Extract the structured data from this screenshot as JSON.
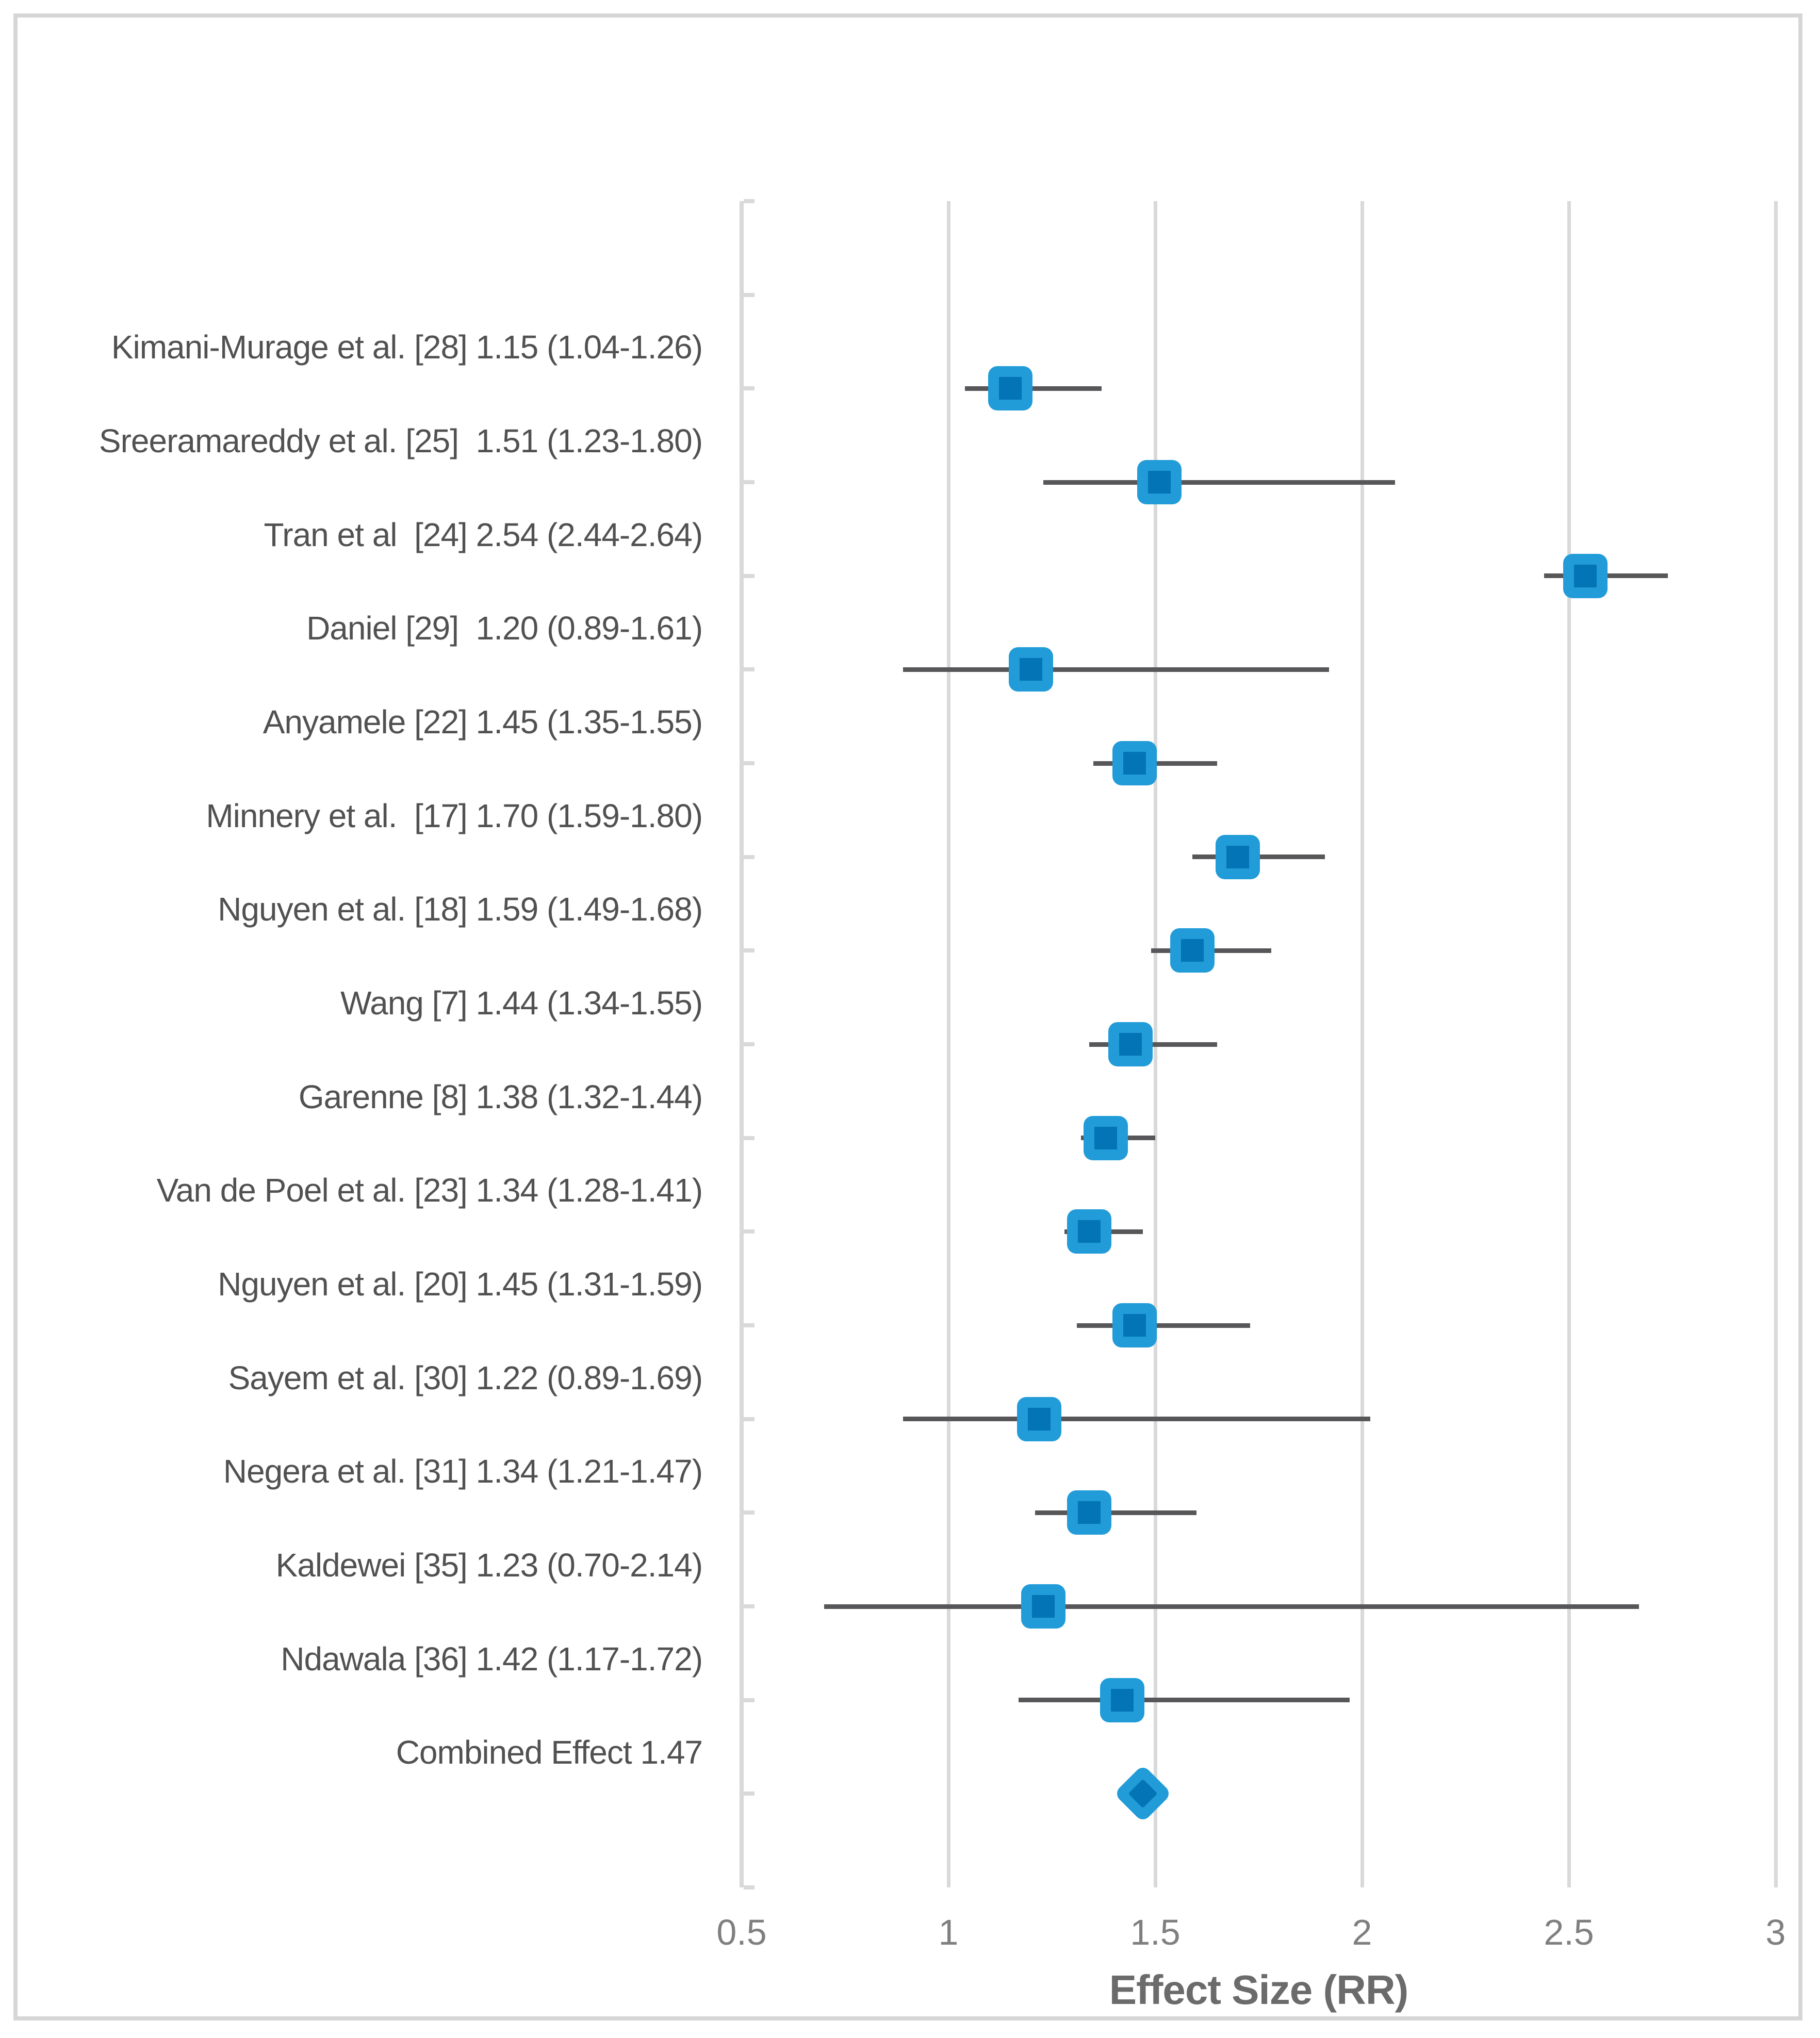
{
  "figure": {
    "kind": "forest plot (meta-analysis)",
    "background": "#ffffff",
    "border_color": "#D6D6D6"
  },
  "chart_data": {
    "type": "scatter",
    "subtype": "forest_plot",
    "xlabel": "Effect Size (RR)",
    "xlim": [
      0.5,
      3
    ],
    "x_ticks": [
      0.5,
      1,
      1.5,
      2,
      2.5,
      3
    ],
    "x_tick_labels": [
      "0.5",
      "1",
      "1.5",
      "2",
      "2.5",
      "3"
    ],
    "grid": "vertical gridlines at each x tick",
    "legend": "none",
    "bar_note": "error bars as drawn in source image: left end = ci_low, right end = mean + (ci_high - ci_low)",
    "studies": [
      {
        "label": "Kimani-Murage et al. [28] 1.15 (1.04-1.26)",
        "mean": 1.15,
        "ci_low": 1.04,
        "ci_high": 1.26,
        "drawn_bar": [
          1.04,
          1.37
        ],
        "marker": "square"
      },
      {
        "label": "Sreeramareddy et al. [25]  1.51 (1.23-1.80)",
        "mean": 1.51,
        "ci_low": 1.23,
        "ci_high": 1.8,
        "drawn_bar": [
          1.23,
          2.08
        ],
        "marker": "square"
      },
      {
        "label": "Tran et al  [24] 2.54 (2.44-2.64)",
        "mean": 2.54,
        "ci_low": 2.44,
        "ci_high": 2.64,
        "drawn_bar": [
          2.44,
          2.74
        ],
        "marker": "square"
      },
      {
        "label": "Daniel [29]  1.20 (0.89-1.61)",
        "mean": 1.2,
        "ci_low": 0.89,
        "ci_high": 1.61,
        "drawn_bar": [
          0.89,
          1.92
        ],
        "marker": "square"
      },
      {
        "label": "Anyamele [22] 1.45 (1.35-1.55)",
        "mean": 1.45,
        "ci_low": 1.35,
        "ci_high": 1.55,
        "drawn_bar": [
          1.35,
          1.65
        ],
        "marker": "square"
      },
      {
        "label": "Minnery et al.  [17] 1.70 (1.59-1.80)",
        "mean": 1.7,
        "ci_low": 1.59,
        "ci_high": 1.8,
        "drawn_bar": [
          1.59,
          1.91
        ],
        "marker": "square"
      },
      {
        "label": "Nguyen et al. [18] 1.59 (1.49-1.68)",
        "mean": 1.59,
        "ci_low": 1.49,
        "ci_high": 1.68,
        "drawn_bar": [
          1.49,
          1.78
        ],
        "marker": "square"
      },
      {
        "label": "Wang [7] 1.44 (1.34-1.55)",
        "mean": 1.44,
        "ci_low": 1.34,
        "ci_high": 1.55,
        "drawn_bar": [
          1.34,
          1.65
        ],
        "marker": "square"
      },
      {
        "label": "Garenne [8] 1.38 (1.32-1.44)",
        "mean": 1.38,
        "ci_low": 1.32,
        "ci_high": 1.44,
        "drawn_bar": [
          1.32,
          1.5
        ],
        "marker": "square"
      },
      {
        "label": "Van de Poel et al. [23] 1.34 (1.28-1.41)",
        "mean": 1.34,
        "ci_low": 1.28,
        "ci_high": 1.41,
        "drawn_bar": [
          1.28,
          1.47
        ],
        "marker": "square"
      },
      {
        "label": "Nguyen et al. [20] 1.45 (1.31-1.59)",
        "mean": 1.45,
        "ci_low": 1.31,
        "ci_high": 1.59,
        "drawn_bar": [
          1.31,
          1.73
        ],
        "marker": "square"
      },
      {
        "label": "Sayem et al. [30] 1.22 (0.89-1.69)",
        "mean": 1.22,
        "ci_low": 0.89,
        "ci_high": 1.69,
        "drawn_bar": [
          0.89,
          2.02
        ],
        "marker": "square"
      },
      {
        "label": "Negera et al. [31] 1.34 (1.21-1.47)",
        "mean": 1.34,
        "ci_low": 1.21,
        "ci_high": 1.47,
        "drawn_bar": [
          1.21,
          1.6
        ],
        "marker": "square"
      },
      {
        "label": "Kaldewei [35] 1.23 (0.70-2.14)",
        "mean": 1.23,
        "ci_low": 0.7,
        "ci_high": 2.14,
        "drawn_bar": [
          0.7,
          2.67
        ],
        "marker": "square"
      },
      {
        "label": "Ndawala [36] 1.42 (1.17-1.72)",
        "mean": 1.42,
        "ci_low": 1.17,
        "ci_high": 1.72,
        "drawn_bar": [
          1.17,
          1.97
        ],
        "marker": "square"
      },
      {
        "label": "Combined Effect 1.47",
        "mean": 1.47,
        "ci_low": null,
        "ci_high": null,
        "drawn_bar": null,
        "marker": "diamond"
      }
    ]
  },
  "colors": {
    "marker_outer": "#219CD8",
    "marker_inner": "#0374B5",
    "error_bar": "#57575A",
    "gridline": "#D9D9D9",
    "axis_line": "#D9D9D9",
    "study_label_text": "#515151",
    "tick_label_text": "#7F7F7F",
    "axis_title_text": "#6B6B6B",
    "frame_border": "#D6D6D6"
  }
}
